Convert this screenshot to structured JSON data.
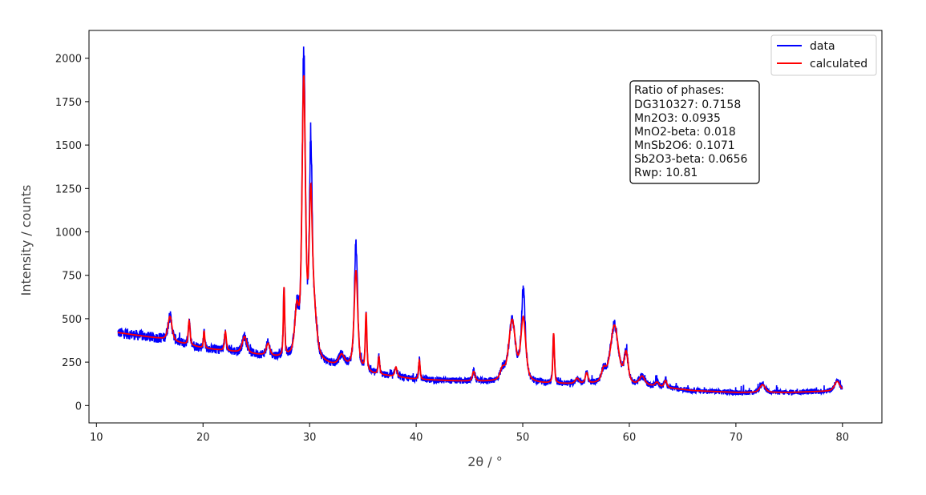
{
  "chart_data": {
    "type": "line",
    "xlabel": "2θ / °",
    "ylabel": "Intensity / counts",
    "xlim": [
      9.3,
      83.7
    ],
    "ylim": [
      -100,
      2160
    ],
    "xticks": [
      10,
      20,
      30,
      40,
      50,
      60,
      70,
      80
    ],
    "yticks": [
      0,
      250,
      500,
      750,
      1000,
      1250,
      1500,
      1750,
      2000
    ],
    "grid": false,
    "legend_position": "top-right",
    "background": [
      [
        12,
        420
      ],
      [
        16,
        385
      ],
      [
        20,
        330
      ],
      [
        24,
        300
      ],
      [
        27,
        275
      ],
      [
        29,
        270
      ],
      [
        32,
        230
      ],
      [
        34,
        220
      ],
      [
        36,
        180
      ],
      [
        40,
        150
      ],
      [
        44,
        140
      ],
      [
        47,
        135
      ],
      [
        52,
        125
      ],
      [
        57,
        120
      ],
      [
        62,
        110
      ],
      [
        66,
        85
      ],
      [
        70,
        75
      ],
      [
        75,
        75
      ],
      [
        80,
        85
      ]
    ],
    "peaks": [
      {
        "x": 16.9,
        "height": 140,
        "fwhm": 0.45
      },
      {
        "x": 18.7,
        "height": 140,
        "fwhm": 0.2
      },
      {
        "x": 20.1,
        "height": 100,
        "fwhm": 0.15
      },
      {
        "x": 22.1,
        "height": 110,
        "fwhm": 0.2
      },
      {
        "x": 23.9,
        "height": 95,
        "fwhm": 0.5
      },
      {
        "x": 26.1,
        "height": 70,
        "fwhm": 0.4
      },
      {
        "x": 27.6,
        "height": 390,
        "fwhm": 0.15
      },
      {
        "x": 28.8,
        "height": 250,
        "fwhm": 0.45
      },
      {
        "x": 29.45,
        "height": 1580,
        "fwhm": 0.38
      },
      {
        "x": 30.1,
        "height": 820,
        "fwhm": 0.35
      },
      {
        "x": 30.4,
        "height": 260,
        "fwhm": 0.6
      },
      {
        "x": 33.0,
        "height": 60,
        "fwhm": 0.6
      },
      {
        "x": 34.35,
        "height": 560,
        "fwhm": 0.4
      },
      {
        "x": 35.3,
        "height": 330,
        "fwhm": 0.17
      },
      {
        "x": 36.5,
        "height": 100,
        "fwhm": 0.18
      },
      {
        "x": 38.1,
        "height": 55,
        "fwhm": 0.25
      },
      {
        "x": 40.3,
        "height": 110,
        "fwhm": 0.17
      },
      {
        "x": 45.4,
        "height": 55,
        "fwhm": 0.3
      },
      {
        "x": 48.1,
        "height": 60,
        "fwhm": 0.5
      },
      {
        "x": 49.0,
        "height": 350,
        "fwhm": 0.75
      },
      {
        "x": 50.05,
        "height": 360,
        "fwhm": 0.55
      },
      {
        "x": 52.9,
        "height": 290,
        "fwhm": 0.17
      },
      {
        "x": 55.1,
        "height": 30,
        "fwhm": 0.4
      },
      {
        "x": 56.0,
        "height": 60,
        "fwhm": 0.3
      },
      {
        "x": 57.6,
        "height": 70,
        "fwhm": 0.5
      },
      {
        "x": 58.6,
        "height": 340,
        "fwhm": 0.9
      },
      {
        "x": 59.7,
        "height": 170,
        "fwhm": 0.45
      },
      {
        "x": 61.2,
        "height": 50,
        "fwhm": 0.6
      },
      {
        "x": 62.6,
        "height": 25,
        "fwhm": 0.4
      },
      {
        "x": 63.4,
        "height": 40,
        "fwhm": 0.3
      },
      {
        "x": 72.5,
        "height": 45,
        "fwhm": 0.6
      },
      {
        "x": 79.5,
        "height": 55,
        "fwhm": 0.6
      }
    ],
    "series": [
      {
        "name": "data",
        "color": "#0000ff"
      },
      {
        "name": "calculated",
        "color": "#ff0000"
      }
    ],
    "annotation": {
      "lines": [
        "Ratio of phases:",
        "DG310327: 0.7158",
        "Mn2O3: 0.0935",
        "MnO2-beta: 0.018",
        "MnSb2O6: 0.1071",
        "Sb2O3-beta: 0.0656",
        "Rwp: 10.81"
      ]
    }
  }
}
